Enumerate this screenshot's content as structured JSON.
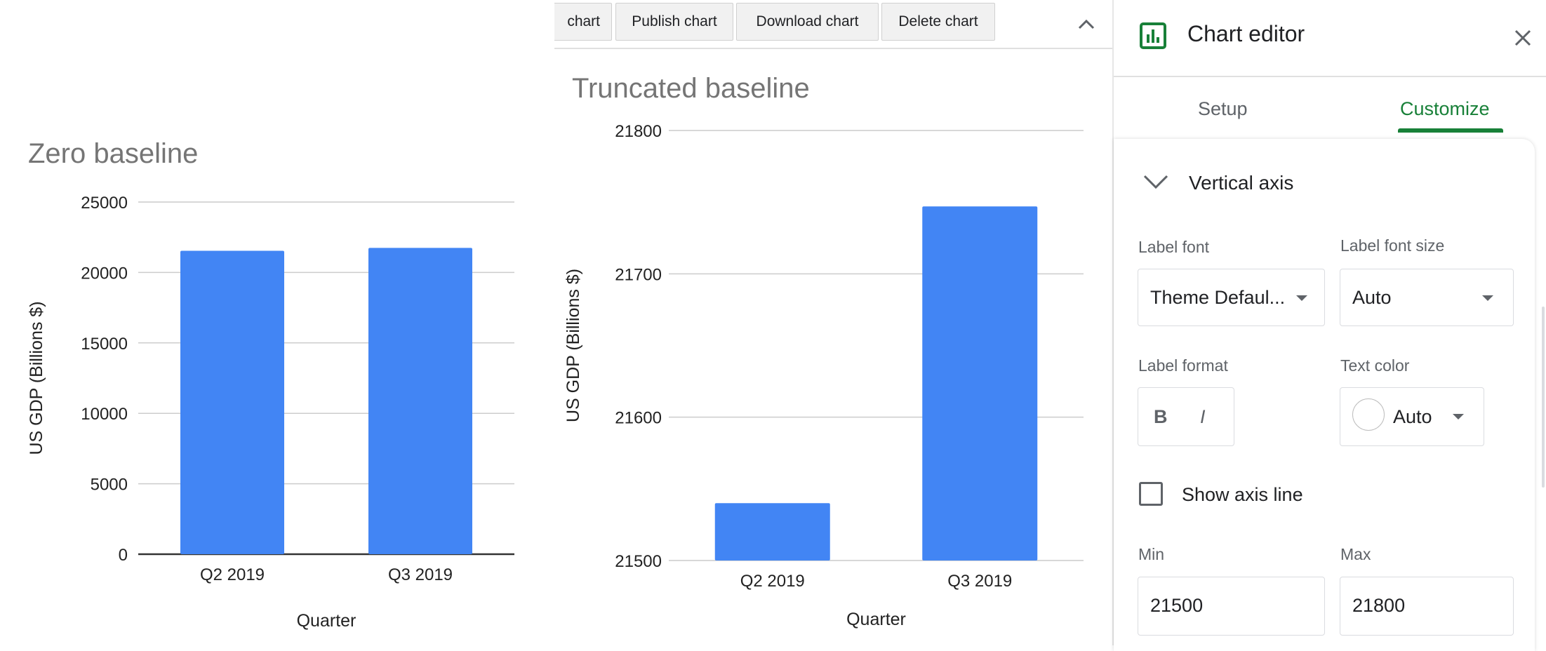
{
  "left_chart": {
    "title": "Zero baseline",
    "ylabel": "US GDP (Billions $)",
    "xlabel": "Quarter"
  },
  "right_chart": {
    "title": "Truncated baseline",
    "ylabel": "US GDP (Billions $)",
    "xlabel": "Quarter"
  },
  "chart_data": [
    {
      "type": "bar",
      "title": "Zero baseline",
      "xlabel": "Quarter",
      "ylabel": "US GDP (Billions $)",
      "categories": [
        "Q2 2019",
        "Q3 2019"
      ],
      "values": [
        21540,
        21747
      ],
      "ylim": [
        0,
        25000
      ],
      "yticks": [
        "25000",
        "20000",
        "15000",
        "10000",
        "5000",
        "0"
      ],
      "grid": true,
      "color": "#4285f4"
    },
    {
      "type": "bar",
      "title": "Truncated baseline",
      "xlabel": "Quarter",
      "ylabel": "US GDP (Billions $)",
      "categories": [
        "Q2 2019",
        "Q3 2019"
      ],
      "values": [
        21540,
        21747
      ],
      "ylim": [
        21500,
        21800
      ],
      "yticks": [
        "21800",
        "21700",
        "21600",
        "21500"
      ],
      "grid": true,
      "color": "#4285f4"
    }
  ],
  "toolbar": {
    "edit_cut_label": "chart",
    "publish_label": "Publish chart",
    "download_label": "Download chart",
    "delete_label": "Delete chart",
    "collapse_icon": "chevron-up-icon"
  },
  "editor": {
    "title": "Chart editor",
    "chart_icon": "bar-chart-icon",
    "close_icon": "close-icon",
    "tabs": {
      "setup": "Setup",
      "customize": "Customize",
      "active": "Customize"
    },
    "accent_color": "#188038",
    "section_title": "Vertical axis",
    "label_font_label": "Label font",
    "label_font_value": "Theme Defaul...",
    "label_font_size_label": "Label font size",
    "label_font_size_value": "Auto",
    "label_format_label": "Label format",
    "bold_glyph": "B",
    "italic_glyph": "I",
    "text_color_label": "Text color",
    "text_color_value": "Auto",
    "show_axis_line_label": "Show axis line",
    "show_axis_line_checked": false,
    "min_label": "Min",
    "min_value": "21500",
    "max_label": "Max",
    "max_value": "21800"
  }
}
